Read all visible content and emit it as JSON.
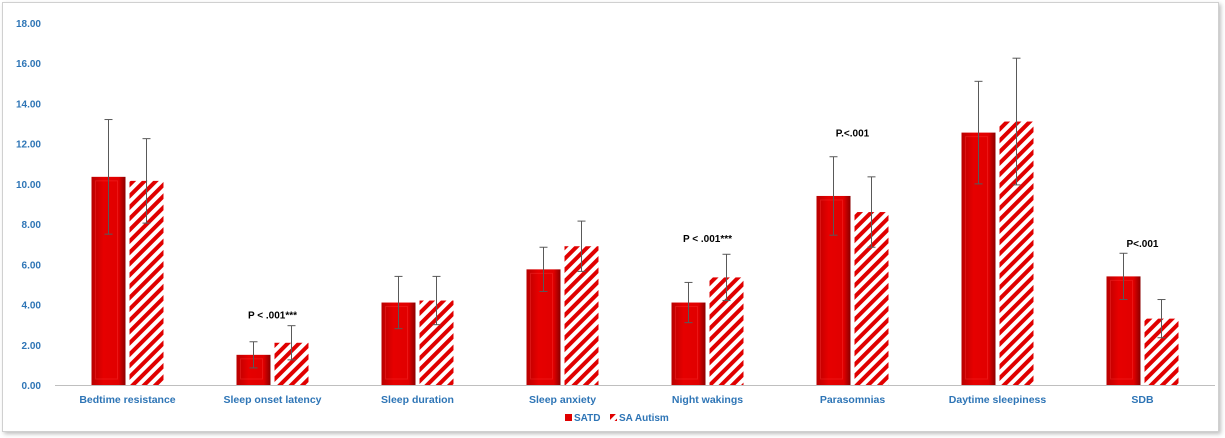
{
  "chart_data": {
    "type": "bar",
    "title": "",
    "xlabel": "",
    "ylabel": "",
    "ylim": [
      0,
      18
    ],
    "ytick_step": 2,
    "ytick_labels": [
      "0.00",
      "2.00",
      "4.00",
      "6.00",
      "8.00",
      "10.00",
      "12.00",
      "14.00",
      "16.00",
      "18.00"
    ],
    "categories": [
      "Bedtime resistance",
      "Sleep onset latency",
      "Sleep duration",
      "Sleep anxiety",
      "Night wakings",
      "Parasomnias",
      "Daytime sleepiness",
      "SDB"
    ],
    "series": [
      {
        "name": "SATD",
        "color": "#e00000",
        "pattern": "solid",
        "values": [
          10.35,
          1.5,
          4.1,
          5.75,
          4.1,
          9.4,
          12.55,
          5.4
        ],
        "error": [
          2.85,
          0.65,
          1.3,
          1.1,
          1.0,
          1.95,
          2.55,
          1.15
        ]
      },
      {
        "name": "SA Autism",
        "color": "#e00000",
        "pattern": "hatched",
        "values": [
          10.15,
          2.1,
          4.2,
          6.9,
          5.35,
          8.6,
          13.1,
          3.3
        ],
        "error": [
          2.1,
          0.85,
          1.2,
          1.25,
          1.15,
          1.75,
          3.15,
          0.95
        ]
      }
    ],
    "annotations": [
      {
        "category_index": 1,
        "text": "P < .001***",
        "y": 3.3
      },
      {
        "category_index": 4,
        "text": "P < .001***",
        "y": 7.1
      },
      {
        "category_index": 5,
        "text": "P.<.001",
        "y": 12.35
      },
      {
        "category_index": 7,
        "text": "P<.001",
        "y": 6.85
      }
    ],
    "grid": false,
    "legend": "bottom-center"
  }
}
